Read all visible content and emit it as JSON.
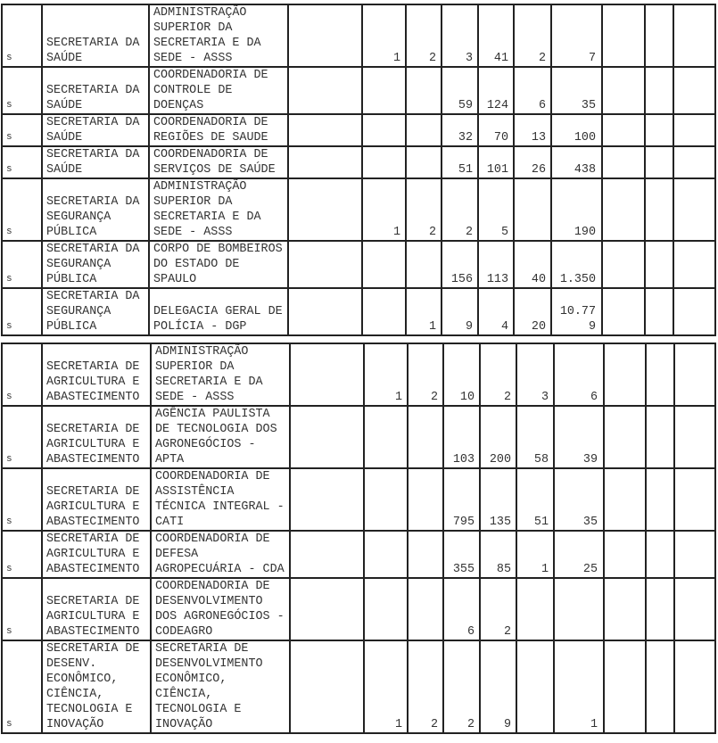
{
  "tables": [
    {
      "rows": [
        {
          "tipo": "s",
          "orgao": "SECRETARIA DA SAÚDE",
          "unidade": "ADMINISTRAÇÃO SUPERIOR DA SECRETARIA E DA SEDE - ASSS",
          "values": [
            "",
            "1",
            "2",
            "3",
            "41",
            "2",
            "7",
            "",
            "",
            ""
          ]
        },
        {
          "tipo": "s",
          "orgao": "SECRETARIA DA SAÚDE",
          "unidade": "COORDENADORIA DE CONTROLE DE DOENÇAS",
          "values": [
            "",
            "",
            "",
            "59",
            "124",
            "6",
            "35",
            "",
            "",
            ""
          ]
        },
        {
          "tipo": "s",
          "orgao": "SECRETARIA DA SAÚDE",
          "unidade": "COORDENADORIA DE REGIÕES DE SAUDE",
          "values": [
            "",
            "",
            "",
            "32",
            "70",
            "13",
            "100",
            "",
            "",
            ""
          ]
        },
        {
          "tipo": "s",
          "orgao": "SECRETARIA DA SAÚDE",
          "unidade": "COORDENADORIA DE SERVIÇOS DE SAÚDE",
          "values": [
            "",
            "",
            "",
            "51",
            "101",
            "26",
            "438",
            "",
            "",
            ""
          ]
        },
        {
          "tipo": "s",
          "orgao": "SECRETARIA DA SEGURANÇA PÚBLICA",
          "unidade": "ADMINISTRAÇÃO SUPERIOR DA SECRETARIA E DA SEDE - ASSS",
          "values": [
            "",
            "1",
            "2",
            "2",
            "5",
            "",
            "190",
            "",
            "",
            ""
          ]
        },
        {
          "tipo": "s",
          "orgao": "SECRETARIA DA SEGURANÇA PÚBLICA",
          "unidade": "CORPO DE BOMBEIROS DO ESTADO DE SPAULO",
          "values": [
            "",
            "",
            "",
            "156",
            "113",
            "40",
            "1.350",
            "",
            "",
            ""
          ]
        },
        {
          "tipo": "s",
          "orgao": "SECRETARIA DA SEGURANÇA PÚBLICA",
          "unidade": "DELEGACIA GERAL DE POLÍCIA - DGP",
          "values": [
            "",
            "",
            "1",
            "9",
            "4",
            "20",
            "10.779",
            "",
            "",
            ""
          ]
        }
      ]
    },
    {
      "rows": [
        {
          "tipo": "s",
          "orgao": "SECRETARIA DE AGRICULTURA E ABASTECIMENTO",
          "unidade": "ADMINISTRAÇÃO SUPERIOR DA SECRETARIA E DA SEDE - ASSS",
          "values": [
            "",
            "1",
            "2",
            "10",
            "2",
            "3",
            "6",
            "",
            "",
            ""
          ]
        },
        {
          "tipo": "s",
          "orgao": "SECRETARIA DE AGRICULTURA E ABASTECIMENTO",
          "unidade": "AGÊNCIA PAULISTA DE TECNOLOGIA DOS AGRONEGÓCIOS - APTA",
          "values": [
            "",
            "",
            "",
            "103",
            "200",
            "58",
            "39",
            "",
            "",
            ""
          ]
        },
        {
          "tipo": "s",
          "orgao": "SECRETARIA DE AGRICULTURA E ABASTECIMENTO",
          "unidade": "COORDENADORIA DE ASSISTÊNCIA TÉCNICA INTEGRAL - CATI",
          "values": [
            "",
            "",
            "",
            "795",
            "135",
            "51",
            "35",
            "",
            "",
            ""
          ]
        },
        {
          "tipo": "s",
          "orgao": "SECRETARIA DE AGRICULTURA E ABASTECIMENTO",
          "unidade": "COORDENADORIA DE DEFESA AGROPECUÁRIA - CDA",
          "values": [
            "",
            "",
            "",
            "355",
            "85",
            "1",
            "25",
            "",
            "",
            ""
          ]
        },
        {
          "tipo": "s",
          "orgao": "SECRETARIA DE AGRICULTURA E ABASTECIMENTO",
          "unidade": "COORDENADORIA DE DESENVOLVIMENTO DOS AGRONEGÓCIOS - CODEAGRO",
          "values": [
            "",
            "",
            "",
            "6",
            "2",
            "",
            "",
            "",
            "",
            ""
          ]
        },
        {
          "tipo": "s",
          "orgao": "SECRETARIA DE DESENV. ECONÔMICO, CIÊNCIA, TECNOLOGIA E INOVAÇÃO",
          "unidade": "SECRETARIA DE DESENVOLVIMENTO ECONÔMICO, CIÊNCIA, TECNOLOGIA E INOVAÇÃO",
          "values": [
            "",
            "1",
            "2",
            "2",
            "9",
            "",
            "1",
            "",
            "",
            ""
          ]
        }
      ]
    }
  ]
}
